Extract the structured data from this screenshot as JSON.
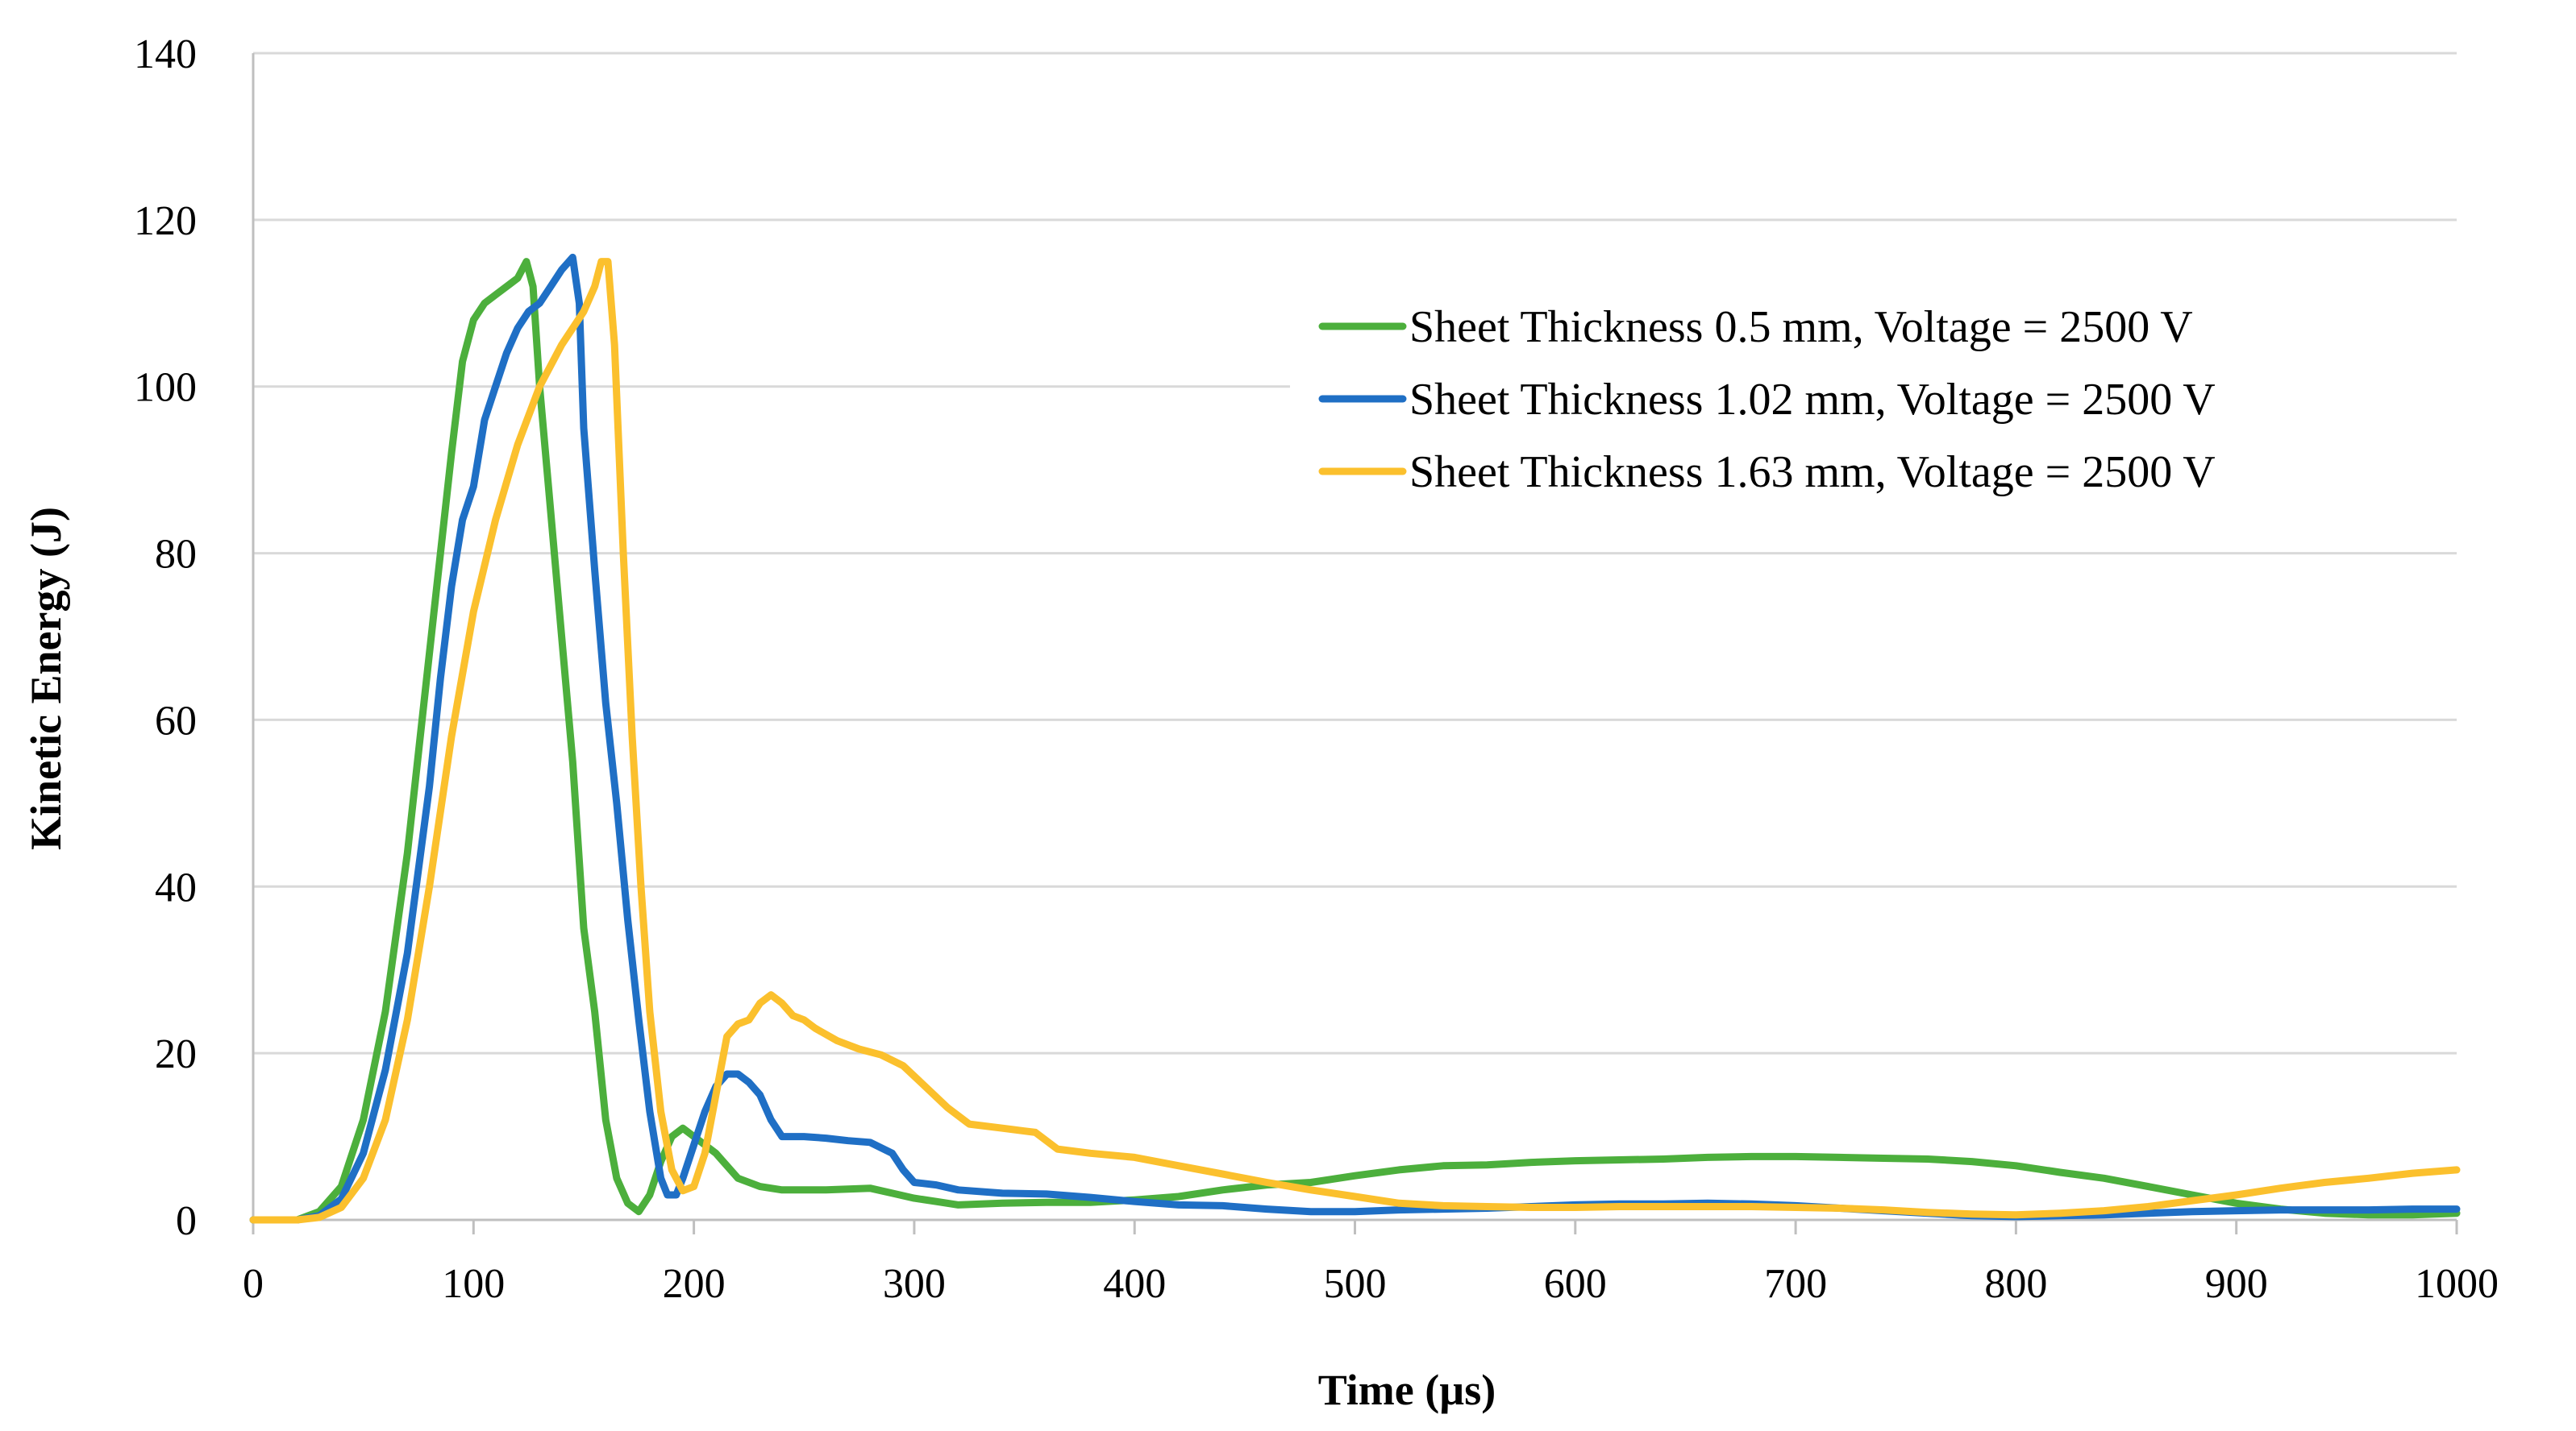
{
  "chart_data": {
    "type": "line",
    "title": "",
    "xlabel": "Time (µs)",
    "ylabel": "Kinetic Energy (J)",
    "xlim": [
      0,
      1000
    ],
    "ylim": [
      0,
      140
    ],
    "x_ticks": [
      0,
      100,
      200,
      300,
      400,
      500,
      600,
      700,
      800,
      900,
      1000
    ],
    "y_ticks": [
      0,
      20,
      40,
      60,
      80,
      100,
      120,
      140
    ],
    "grid": true,
    "legend_position": "top-right",
    "series": [
      {
        "name": "Sheet Thickness 0.5 mm, Voltage = 2500 V",
        "color": "#4caf3c",
        "points": [
          [
            0,
            0
          ],
          [
            20,
            0
          ],
          [
            30,
            1
          ],
          [
            40,
            4
          ],
          [
            50,
            12
          ],
          [
            60,
            25
          ],
          [
            70,
            44
          ],
          [
            80,
            68
          ],
          [
            90,
            92
          ],
          [
            95,
            103
          ],
          [
            100,
            108
          ],
          [
            105,
            110
          ],
          [
            110,
            111
          ],
          [
            115,
            112
          ],
          [
            120,
            113
          ],
          [
            124,
            115
          ],
          [
            127,
            112
          ],
          [
            130,
            100
          ],
          [
            135,
            85
          ],
          [
            140,
            70
          ],
          [
            145,
            55
          ],
          [
            150,
            35
          ],
          [
            155,
            25
          ],
          [
            160,
            12
          ],
          [
            165,
            5
          ],
          [
            170,
            2
          ],
          [
            175,
            1
          ],
          [
            180,
            3
          ],
          [
            185,
            7
          ],
          [
            190,
            10
          ],
          [
            195,
            11
          ],
          [
            200,
            10
          ],
          [
            210,
            8
          ],
          [
            220,
            5
          ],
          [
            230,
            4
          ],
          [
            240,
            3.6
          ],
          [
            260,
            3.6
          ],
          [
            280,
            3.8
          ],
          [
            290,
            3.2
          ],
          [
            300,
            2.6
          ],
          [
            310,
            2.2
          ],
          [
            320,
            1.8
          ],
          [
            340,
            2
          ],
          [
            360,
            2.1
          ],
          [
            380,
            2.1
          ],
          [
            400,
            2.4
          ],
          [
            420,
            2.8
          ],
          [
            440,
            3.6
          ],
          [
            460,
            4.2
          ],
          [
            480,
            4.5
          ],
          [
            500,
            5.3
          ],
          [
            520,
            6
          ],
          [
            540,
            6.5
          ],
          [
            560,
            6.6
          ],
          [
            580,
            6.9
          ],
          [
            600,
            7.1
          ],
          [
            620,
            7.2
          ],
          [
            640,
            7.3
          ],
          [
            660,
            7.5
          ],
          [
            680,
            7.6
          ],
          [
            700,
            7.6
          ],
          [
            720,
            7.5
          ],
          [
            740,
            7.4
          ],
          [
            760,
            7.3
          ],
          [
            780,
            7
          ],
          [
            800,
            6.5
          ],
          [
            820,
            5.7
          ],
          [
            840,
            5
          ],
          [
            860,
            4
          ],
          [
            880,
            3
          ],
          [
            900,
            2
          ],
          [
            920,
            1.3
          ],
          [
            940,
            0.8
          ],
          [
            960,
            0.6
          ],
          [
            980,
            0.6
          ],
          [
            1000,
            0.8
          ]
        ]
      },
      {
        "name": "Sheet Thickness 1.02 mm, Voltage = 2500 V",
        "color": "#1f6fc5",
        "points": [
          [
            0,
            0
          ],
          [
            20,
            0
          ],
          [
            30,
            0.5
          ],
          [
            40,
            2.5
          ],
          [
            50,
            8
          ],
          [
            60,
            18
          ],
          [
            70,
            32
          ],
          [
            80,
            52
          ],
          [
            85,
            65
          ],
          [
            90,
            76
          ],
          [
            95,
            84
          ],
          [
            100,
            88
          ],
          [
            105,
            96
          ],
          [
            110,
            100
          ],
          [
            115,
            104
          ],
          [
            120,
            107
          ],
          [
            125,
            109
          ],
          [
            130,
            110
          ],
          [
            135,
            112
          ],
          [
            140,
            114
          ],
          [
            145,
            115.5
          ],
          [
            148,
            110
          ],
          [
            150,
            95
          ],
          [
            155,
            78
          ],
          [
            160,
            62
          ],
          [
            165,
            50
          ],
          [
            170,
            36
          ],
          [
            175,
            24
          ],
          [
            180,
            13
          ],
          [
            185,
            5
          ],
          [
            188,
            3
          ],
          [
            192,
            3
          ],
          [
            195,
            5
          ],
          [
            200,
            9
          ],
          [
            205,
            13
          ],
          [
            210,
            16
          ],
          [
            215,
            17.5
          ],
          [
            220,
            17.5
          ],
          [
            225,
            16.5
          ],
          [
            230,
            15
          ],
          [
            235,
            12
          ],
          [
            240,
            10
          ],
          [
            250,
            10
          ],
          [
            260,
            9.8
          ],
          [
            270,
            9.5
          ],
          [
            280,
            9.3
          ],
          [
            290,
            8
          ],
          [
            295,
            6
          ],
          [
            300,
            4.5
          ],
          [
            310,
            4.2
          ],
          [
            320,
            3.6
          ],
          [
            340,
            3.2
          ],
          [
            360,
            3.1
          ],
          [
            380,
            2.7
          ],
          [
            400,
            2.2
          ],
          [
            420,
            1.8
          ],
          [
            440,
            1.7
          ],
          [
            460,
            1.3
          ],
          [
            480,
            1
          ],
          [
            500,
            1
          ],
          [
            520,
            1.2
          ],
          [
            540,
            1.3
          ],
          [
            560,
            1.4
          ],
          [
            580,
            1.6
          ],
          [
            600,
            1.8
          ],
          [
            620,
            1.9
          ],
          [
            640,
            1.9
          ],
          [
            660,
            2
          ],
          [
            680,
            1.9
          ],
          [
            700,
            1.7
          ],
          [
            720,
            1.4
          ],
          [
            740,
            1.1
          ],
          [
            760,
            0.8
          ],
          [
            780,
            0.5
          ],
          [
            800,
            0.4
          ],
          [
            820,
            0.5
          ],
          [
            840,
            0.6
          ],
          [
            860,
            0.8
          ],
          [
            880,
            1
          ],
          [
            900,
            1.1
          ],
          [
            920,
            1.2
          ],
          [
            940,
            1.2
          ],
          [
            960,
            1.2
          ],
          [
            980,
            1.3
          ],
          [
            1000,
            1.3
          ]
        ]
      },
      {
        "name": "Sheet Thickness 1.63 mm, Voltage = 2500 V",
        "color": "#fbc02d",
        "points": [
          [
            0,
            0
          ],
          [
            20,
            0
          ],
          [
            30,
            0.3
          ],
          [
            40,
            1.5
          ],
          [
            50,
            5
          ],
          [
            60,
            12
          ],
          [
            70,
            24
          ],
          [
            80,
            40
          ],
          [
            90,
            58
          ],
          [
            100,
            73
          ],
          [
            110,
            84
          ],
          [
            120,
            93
          ],
          [
            130,
            100
          ],
          [
            140,
            105
          ],
          [
            150,
            109
          ],
          [
            155,
            112
          ],
          [
            158,
            115
          ],
          [
            161,
            115
          ],
          [
            164,
            105
          ],
          [
            168,
            80
          ],
          [
            172,
            58
          ],
          [
            176,
            40
          ],
          [
            180,
            25
          ],
          [
            185,
            13
          ],
          [
            190,
            6
          ],
          [
            195,
            3.5
          ],
          [
            200,
            4
          ],
          [
            205,
            8
          ],
          [
            210,
            15
          ],
          [
            215,
            22
          ],
          [
            220,
            23.5
          ],
          [
            225,
            24
          ],
          [
            230,
            26
          ],
          [
            235,
            27
          ],
          [
            240,
            26
          ],
          [
            245,
            24.5
          ],
          [
            250,
            24
          ],
          [
            255,
            23
          ],
          [
            265,
            21.5
          ],
          [
            275,
            20.5
          ],
          [
            285,
            19.8
          ],
          [
            295,
            18.5
          ],
          [
            305,
            16
          ],
          [
            315,
            13.5
          ],
          [
            325,
            11.5
          ],
          [
            340,
            11
          ],
          [
            355,
            10.5
          ],
          [
            365,
            8.5
          ],
          [
            380,
            8
          ],
          [
            400,
            7.5
          ],
          [
            420,
            6.5
          ],
          [
            440,
            5.5
          ],
          [
            460,
            4.5
          ],
          [
            480,
            3.6
          ],
          [
            500,
            2.8
          ],
          [
            520,
            2
          ],
          [
            540,
            1.7
          ],
          [
            560,
            1.6
          ],
          [
            580,
            1.5
          ],
          [
            600,
            1.5
          ],
          [
            620,
            1.6
          ],
          [
            640,
            1.6
          ],
          [
            660,
            1.6
          ],
          [
            680,
            1.6
          ],
          [
            700,
            1.5
          ],
          [
            720,
            1.4
          ],
          [
            740,
            1.2
          ],
          [
            760,
            0.9
          ],
          [
            780,
            0.7
          ],
          [
            800,
            0.6
          ],
          [
            820,
            0.8
          ],
          [
            840,
            1.1
          ],
          [
            860,
            1.6
          ],
          [
            880,
            2.3
          ],
          [
            900,
            3
          ],
          [
            920,
            3.8
          ],
          [
            940,
            4.5
          ],
          [
            960,
            5
          ],
          [
            980,
            5.6
          ],
          [
            1000,
            6
          ]
        ]
      }
    ]
  }
}
